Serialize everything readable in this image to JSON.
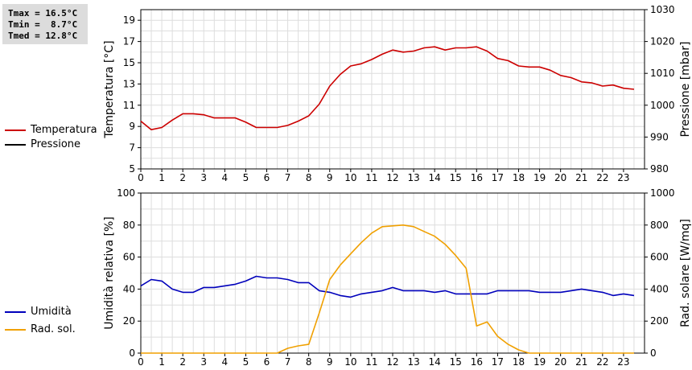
{
  "stats": {
    "tmax": "Tmax = 16.5°C",
    "tmin": "Tmin =  8.7°C",
    "tmed": "Tmed = 12.8°C"
  },
  "legend_top": [
    {
      "label": "Temperatura",
      "color": "#cc0000"
    },
    {
      "label": "Pressione",
      "color": "#000000"
    }
  ],
  "legend_bottom": [
    {
      "label": "Umidità",
      "color": "#0000bb"
    },
    {
      "label": "Rad. sol.",
      "color": "#f0a000"
    }
  ],
  "chart_data": [
    {
      "type": "line",
      "ylabel": "Temperatura [°C]",
      "y2label": "Pressione [mbar]",
      "xlim": [
        0,
        24
      ],
      "ylim": [
        5,
        20
      ],
      "y2lim": [
        980,
        1030
      ],
      "xticks": [
        0,
        1,
        2,
        3,
        4,
        5,
        6,
        7,
        8,
        9,
        10,
        11,
        12,
        13,
        14,
        15,
        16,
        17,
        18,
        19,
        20,
        21,
        22,
        23
      ],
      "yticks": [
        5,
        7,
        9,
        11,
        13,
        15,
        17,
        19
      ],
      "y2ticks": [
        980,
        990,
        1000,
        1010,
        1020,
        1030
      ],
      "grid": true,
      "series": [
        {
          "name": "Temperatura",
          "axis": "left",
          "color": "#cc0000",
          "x": [
            0,
            0.5,
            1,
            1.5,
            2,
            2.5,
            3,
            3.5,
            4,
            4.5,
            5,
            5.5,
            6,
            6.5,
            7,
            7.5,
            8,
            8.5,
            9,
            9.5,
            10,
            10.5,
            11,
            11.5,
            12,
            12.5,
            13,
            13.5,
            14,
            14.5,
            15,
            15.5,
            16,
            16.5,
            17,
            17.5,
            18,
            18.5,
            19,
            19.5,
            20,
            20.5,
            21,
            21.5,
            22,
            22.5,
            23,
            23.5
          ],
          "y": [
            9.5,
            8.7,
            8.9,
            9.6,
            10.2,
            10.2,
            10.1,
            9.8,
            9.8,
            9.8,
            9.4,
            8.9,
            8.9,
            8.9,
            9.1,
            9.5,
            10.0,
            11.1,
            12.8,
            13.9,
            14.7,
            14.9,
            15.3,
            15.8,
            16.2,
            16.0,
            16.1,
            16.4,
            16.5,
            16.2,
            16.4,
            16.4,
            16.5,
            16.1,
            15.4,
            15.2,
            14.7,
            14.6,
            14.6,
            14.3,
            13.8,
            13.6,
            13.2,
            13.1,
            12.8,
            12.9,
            12.6,
            12.5
          ]
        },
        {
          "name": "Pressione",
          "axis": "right",
          "color": "#000000",
          "x": [],
          "y": []
        }
      ]
    },
    {
      "type": "line",
      "ylabel": "Umidità relativa [%]",
      "y2label": "Rad. solare [W/mq]",
      "xlim": [
        0,
        24
      ],
      "ylim": [
        0,
        100
      ],
      "y2lim": [
        0,
        1000
      ],
      "xticks": [
        0,
        1,
        2,
        3,
        4,
        5,
        6,
        7,
        8,
        9,
        10,
        11,
        12,
        13,
        14,
        15,
        16,
        17,
        18,
        19,
        20,
        21,
        22,
        23
      ],
      "yticks": [
        0,
        20,
        40,
        60,
        80,
        100
      ],
      "y2ticks": [
        0,
        200,
        400,
        600,
        800,
        1000
      ],
      "grid": true,
      "series": [
        {
          "name": "Umidità",
          "axis": "left",
          "color": "#0000bb",
          "x": [
            0,
            0.5,
            1,
            1.5,
            2,
            2.5,
            3,
            3.5,
            4,
            4.5,
            5,
            5.5,
            6,
            6.5,
            7,
            7.5,
            8,
            8.5,
            9,
            9.5,
            10,
            10.5,
            11,
            11.5,
            12,
            12.5,
            13,
            13.5,
            14,
            14.5,
            15,
            15.5,
            16,
            16.5,
            17,
            17.5,
            18,
            18.5,
            19,
            19.5,
            20,
            20.5,
            21,
            21.5,
            22,
            22.5,
            23,
            23.5
          ],
          "y": [
            42,
            46,
            45,
            40,
            38,
            38,
            41,
            41,
            42,
            43,
            45,
            48,
            47,
            47,
            46,
            44,
            44,
            39,
            38,
            36,
            35,
            37,
            38,
            39,
            41,
            39,
            39,
            39,
            38,
            39,
            37,
            37,
            37,
            37,
            39,
            39,
            39,
            39,
            38,
            38,
            38,
            39,
            40,
            39,
            38,
            36,
            37,
            36
          ]
        },
        {
          "name": "Rad. sol.",
          "axis": "right",
          "color": "#f0a000",
          "x": [
            0,
            0.5,
            1,
            1.5,
            2,
            2.5,
            3,
            3.5,
            4,
            4.5,
            5,
            5.5,
            6,
            6.5,
            7,
            7.5,
            8,
            8.5,
            9,
            9.5,
            10,
            10.5,
            11,
            11.5,
            12,
            12.5,
            13,
            13.5,
            14,
            14.5,
            15,
            15.5,
            16,
            16.5,
            17,
            17.5,
            18,
            18.5,
            19,
            19.5,
            20,
            20.5,
            21,
            21.5,
            22,
            22.5,
            23,
            23.5
          ],
          "y": [
            0,
            0,
            0,
            0,
            0,
            0,
            0,
            0,
            0,
            0,
            0,
            0,
            0,
            0,
            30,
            45,
            55,
            250,
            460,
            550,
            620,
            690,
            750,
            790,
            795,
            800,
            790,
            760,
            730,
            680,
            610,
            530,
            170,
            195,
            105,
            55,
            20,
            0,
            0,
            0,
            0,
            0,
            0,
            0,
            0,
            0,
            0,
            0
          ]
        }
      ]
    }
  ]
}
